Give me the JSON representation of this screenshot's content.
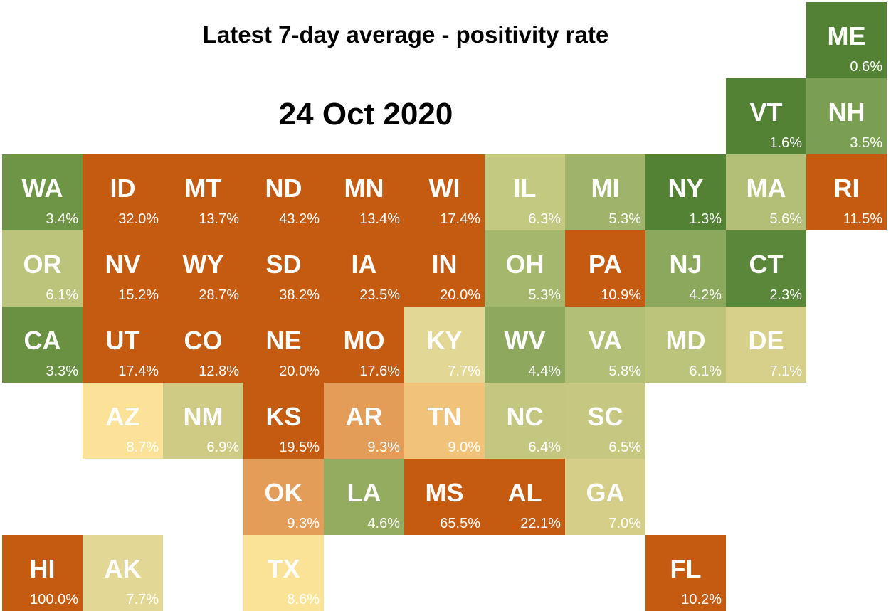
{
  "header": {
    "title": "Latest 7-day average - positivity rate",
    "date": "24 Oct 2020"
  },
  "states": [
    {
      "abbr": "ME",
      "rate": "0.6%",
      "value": 0.6,
      "row": 0,
      "col": 10,
      "color": "#548235"
    },
    {
      "abbr": "VT",
      "rate": "1.6%",
      "value": 1.6,
      "row": 1,
      "col": 9,
      "color": "#548235"
    },
    {
      "abbr": "NH",
      "rate": "3.5%",
      "value": 3.5,
      "row": 1,
      "col": 10,
      "color": "#7a9e52"
    },
    {
      "abbr": "WA",
      "rate": "3.4%",
      "value": 3.4,
      "row": 2,
      "col": 0,
      "color": "#6e9445"
    },
    {
      "abbr": "ID",
      "rate": "32.0%",
      "value": 32.0,
      "row": 2,
      "col": 1,
      "color": "#c55a11"
    },
    {
      "abbr": "MT",
      "rate": "13.7%",
      "value": 13.7,
      "row": 2,
      "col": 2,
      "color": "#c55a11"
    },
    {
      "abbr": "ND",
      "rate": "43.2%",
      "value": 43.2,
      "row": 2,
      "col": 3,
      "color": "#c55a11"
    },
    {
      "abbr": "MN",
      "rate": "13.4%",
      "value": 13.4,
      "row": 2,
      "col": 4,
      "color": "#c55a11"
    },
    {
      "abbr": "WI",
      "rate": "17.4%",
      "value": 17.4,
      "row": 2,
      "col": 5,
      "color": "#c55a11"
    },
    {
      "abbr": "IL",
      "rate": "6.3%",
      "value": 6.3,
      "row": 2,
      "col": 6,
      "color": "#c3c980"
    },
    {
      "abbr": "MI",
      "rate": "5.3%",
      "value": 5.3,
      "row": 2,
      "col": 7,
      "color": "#9fb46a"
    },
    {
      "abbr": "NY",
      "rate": "1.3%",
      "value": 1.3,
      "row": 2,
      "col": 8,
      "color": "#548235"
    },
    {
      "abbr": "MA",
      "rate": "5.6%",
      "value": 5.6,
      "row": 2,
      "col": 9,
      "color": "#b3bf76"
    },
    {
      "abbr": "RI",
      "rate": "11.5%",
      "value": 11.5,
      "row": 2,
      "col": 10,
      "color": "#c55a11"
    },
    {
      "abbr": "OR",
      "rate": "6.1%",
      "value": 6.1,
      "row": 3,
      "col": 0,
      "color": "#bcc37a"
    },
    {
      "abbr": "NV",
      "rate": "15.2%",
      "value": 15.2,
      "row": 3,
      "col": 1,
      "color": "#c55a11"
    },
    {
      "abbr": "WY",
      "rate": "28.7%",
      "value": 28.7,
      "row": 3,
      "col": 2,
      "color": "#c55a11"
    },
    {
      "abbr": "SD",
      "rate": "38.2%",
      "value": 38.2,
      "row": 3,
      "col": 3,
      "color": "#c55a11"
    },
    {
      "abbr": "IA",
      "rate": "23.5%",
      "value": 23.5,
      "row": 3,
      "col": 4,
      "color": "#c55a11"
    },
    {
      "abbr": "IN",
      "rate": "20.0%",
      "value": 20.0,
      "row": 3,
      "col": 5,
      "color": "#c55a11"
    },
    {
      "abbr": "OH",
      "rate": "5.3%",
      "value": 5.3,
      "row": 3,
      "col": 6,
      "color": "#a5b76d"
    },
    {
      "abbr": "PA",
      "rate": "10.9%",
      "value": 10.9,
      "row": 3,
      "col": 7,
      "color": "#c55a11"
    },
    {
      "abbr": "NJ",
      "rate": "4.2%",
      "value": 4.2,
      "row": 3,
      "col": 8,
      "color": "#8ca85c"
    },
    {
      "abbr": "CT",
      "rate": "2.3%",
      "value": 2.3,
      "row": 3,
      "col": 9,
      "color": "#5a8739"
    },
    {
      "abbr": "CA",
      "rate": "3.3%",
      "value": 3.3,
      "row": 4,
      "col": 0,
      "color": "#6a9142"
    },
    {
      "abbr": "UT",
      "rate": "17.4%",
      "value": 17.4,
      "row": 4,
      "col": 1,
      "color": "#c55a11"
    },
    {
      "abbr": "CO",
      "rate": "12.8%",
      "value": 12.8,
      "row": 4,
      "col": 2,
      "color": "#c55a11"
    },
    {
      "abbr": "NE",
      "rate": "20.0%",
      "value": 20.0,
      "row": 4,
      "col": 3,
      "color": "#c55a11"
    },
    {
      "abbr": "MO",
      "rate": "17.6%",
      "value": 17.6,
      "row": 4,
      "col": 4,
      "color": "#c55a11"
    },
    {
      "abbr": "KY",
      "rate": "7.7%",
      "value": 7.7,
      "row": 4,
      "col": 5,
      "color": "#e2d795"
    },
    {
      "abbr": "WV",
      "rate": "4.4%",
      "value": 4.4,
      "row": 4,
      "col": 6,
      "color": "#8ea95d"
    },
    {
      "abbr": "VA",
      "rate": "5.8%",
      "value": 5.8,
      "row": 4,
      "col": 7,
      "color": "#b2bf76"
    },
    {
      "abbr": "MD",
      "rate": "6.1%",
      "value": 6.1,
      "row": 4,
      "col": 8,
      "color": "#bcc37a"
    },
    {
      "abbr": "DE",
      "rate": "7.1%",
      "value": 7.1,
      "row": 4,
      "col": 9,
      "color": "#d7d08a"
    },
    {
      "abbr": "AZ",
      "rate": "8.7%",
      "value": 8.7,
      "row": 5,
      "col": 1,
      "color": "#fbe298"
    },
    {
      "abbr": "NM",
      "rate": "6.9%",
      "value": 6.9,
      "row": 5,
      "col": 2,
      "color": "#cfcb85"
    },
    {
      "abbr": "KS",
      "rate": "19.5%",
      "value": 19.5,
      "row": 5,
      "col": 3,
      "color": "#c55a11"
    },
    {
      "abbr": "AR",
      "rate": "9.3%",
      "value": 9.3,
      "row": 5,
      "col": 4,
      "color": "#e49d58"
    },
    {
      "abbr": "TN",
      "rate": "9.0%",
      "value": 9.0,
      "row": 5,
      "col": 5,
      "color": "#f1c27a"
    },
    {
      "abbr": "NC",
      "rate": "6.4%",
      "value": 6.4,
      "row": 5,
      "col": 6,
      "color": "#c3c780"
    },
    {
      "abbr": "SC",
      "rate": "6.5%",
      "value": 6.5,
      "row": 5,
      "col": 7,
      "color": "#c6c882"
    },
    {
      "abbr": "OK",
      "rate": "9.3%",
      "value": 9.3,
      "row": 6,
      "col": 3,
      "color": "#e49d58"
    },
    {
      "abbr": "LA",
      "rate": "4.6%",
      "value": 4.6,
      "row": 6,
      "col": 4,
      "color": "#94ac60"
    },
    {
      "abbr": "MS",
      "rate": "65.5%",
      "value": 65.5,
      "row": 6,
      "col": 5,
      "color": "#c55a11"
    },
    {
      "abbr": "AL",
      "rate": "22.1%",
      "value": 22.1,
      "row": 6,
      "col": 6,
      "color": "#c55a11"
    },
    {
      "abbr": "GA",
      "rate": "7.0%",
      "value": 7.0,
      "row": 6,
      "col": 7,
      "color": "#d4ce88"
    },
    {
      "abbr": "HI",
      "rate": "100.0%",
      "value": 100.0,
      "row": 7,
      "col": 0,
      "color": "#c55a11"
    },
    {
      "abbr": "AK",
      "rate": "7.7%",
      "value": 7.7,
      "row": 7,
      "col": 1,
      "color": "#e2d795"
    },
    {
      "abbr": "TX",
      "rate": "8.6%",
      "value": 8.6,
      "row": 7,
      "col": 3,
      "color": "#fae297"
    },
    {
      "abbr": "FL",
      "rate": "10.2%",
      "value": 10.2,
      "row": 7,
      "col": 8,
      "color": "#c55a11"
    }
  ]
}
